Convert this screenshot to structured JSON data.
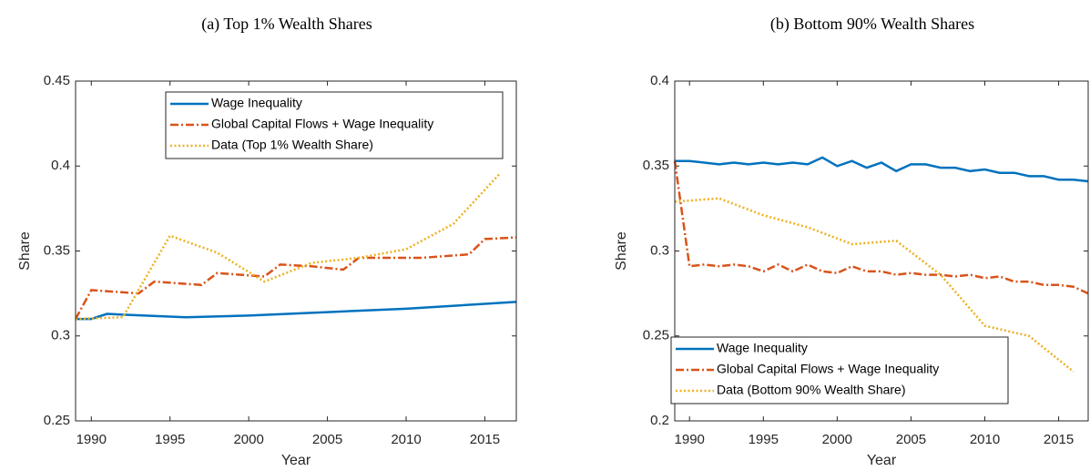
{
  "chart_data": [
    {
      "type": "line",
      "title": "(a) Top 1% Wealth Shares",
      "x_label": "Year",
      "y_label": "Share",
      "xlim": [
        1989,
        2017
      ],
      "xticks": [
        1990,
        1995,
        2000,
        2005,
        2010,
        2015
      ],
      "ylim": [
        0.25,
        0.45
      ],
      "yticks": [
        0.25,
        0.3,
        0.35,
        0.4,
        0.45
      ],
      "legend": "upper right",
      "series": [
        {
          "name": "Wage Inequality",
          "color": "#0072bd",
          "style": "solid",
          "x": [
            1989,
            1990,
            1991,
            1992,
            1996,
            2000,
            2005,
            2010,
            2017
          ],
          "values": [
            0.31,
            0.31,
            0.313,
            0.3125,
            0.311,
            0.312,
            0.314,
            0.316,
            0.32
          ]
        },
        {
          "name": "Global Capital Flows + Wage Inequality",
          "color": "#d95319",
          "style": "dashdot",
          "x": [
            1989,
            1990,
            1993,
            1994,
            1997,
            1998,
            2001,
            2002,
            2004,
            2006,
            2007,
            2011,
            2014,
            2015,
            2017
          ],
          "values": [
            0.31,
            0.327,
            0.325,
            0.332,
            0.33,
            0.337,
            0.335,
            0.342,
            0.341,
            0.339,
            0.346,
            0.346,
            0.348,
            0.357,
            0.358
          ]
        },
        {
          "name": "Data (Top 1% Wealth Share)",
          "color": "#edb120",
          "style": "dotted",
          "x": [
            1989,
            1992,
            1995,
            1998,
            2001,
            2004,
            2007,
            2010,
            2013,
            2016
          ],
          "values": [
            0.31,
            0.311,
            0.359,
            0.349,
            0.332,
            0.343,
            0.346,
            0.351,
            0.366,
            0.396
          ]
        }
      ]
    },
    {
      "type": "line",
      "title": "(b) Bottom 90% Wealth Shares",
      "x_label": "Year",
      "y_label": "Share",
      "xlim": [
        1989,
        2017
      ],
      "xticks": [
        1990,
        1995,
        2000,
        2005,
        2010,
        2015
      ],
      "ylim": [
        0.2,
        0.4
      ],
      "yticks": [
        0.2,
        0.25,
        0.3,
        0.35,
        0.4
      ],
      "legend": "lower left",
      "series": [
        {
          "name": "Wage Inequality",
          "color": "#0072bd",
          "style": "solid",
          "x": [
            1989,
            1990,
            1991,
            1992,
            1993,
            1994,
            1995,
            1996,
            1997,
            1998,
            1999,
            2000,
            2001,
            2002,
            2003,
            2004,
            2005,
            2006,
            2007,
            2008,
            2009,
            2010,
            2011,
            2012,
            2013,
            2014,
            2015,
            2016,
            2017
          ],
          "values": [
            0.353,
            0.353,
            0.352,
            0.351,
            0.352,
            0.351,
            0.352,
            0.351,
            0.352,
            0.351,
            0.355,
            0.35,
            0.353,
            0.349,
            0.352,
            0.347,
            0.351,
            0.351,
            0.349,
            0.349,
            0.347,
            0.348,
            0.346,
            0.346,
            0.344,
            0.344,
            0.342,
            0.342,
            0.341
          ]
        },
        {
          "name": "Global Capital Flows + Wage Inequality",
          "color": "#d95319",
          "style": "dashdot",
          "x": [
            1989,
            1990,
            1991,
            1992,
            1993,
            1994,
            1995,
            1996,
            1997,
            1998,
            1999,
            2000,
            2001,
            2002,
            2003,
            2004,
            2005,
            2006,
            2007,
            2008,
            2009,
            2010,
            2011,
            2012,
            2013,
            2014,
            2015,
            2016,
            2017
          ],
          "values": [
            0.353,
            0.291,
            0.292,
            0.291,
            0.292,
            0.291,
            0.288,
            0.292,
            0.288,
            0.292,
            0.288,
            0.287,
            0.291,
            0.288,
            0.288,
            0.286,
            0.287,
            0.286,
            0.286,
            0.285,
            0.286,
            0.284,
            0.285,
            0.282,
            0.282,
            0.28,
            0.28,
            0.279,
            0.275
          ]
        },
        {
          "name": "Data (Bottom 90% Wealth Share)",
          "color": "#edb120",
          "style": "dotted",
          "x": [
            1989,
            1992,
            1995,
            1998,
            2001,
            2004,
            2007,
            2010,
            2013,
            2016
          ],
          "values": [
            0.329,
            0.331,
            0.321,
            0.314,
            0.304,
            0.306,
            0.286,
            0.256,
            0.25,
            0.229
          ]
        }
      ]
    }
  ]
}
